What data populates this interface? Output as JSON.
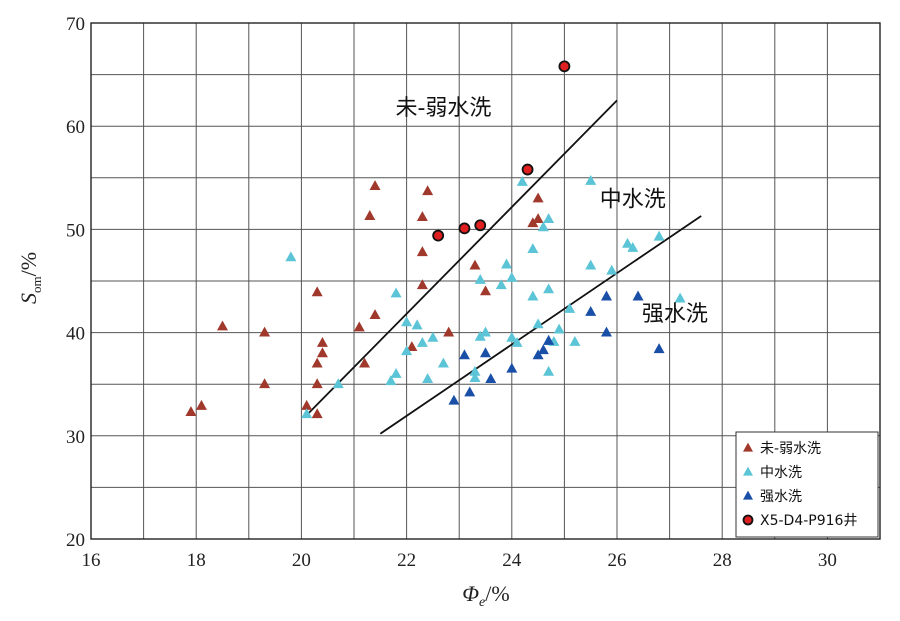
{
  "chart_data": {
    "type": "scatter",
    "xlabel": {
      "symbol": "Φ",
      "sub": "e",
      "unit": "/%"
    },
    "ylabel": {
      "symbol": "S",
      "sub": "om",
      "unit": "/%"
    },
    "xlim": [
      16,
      31
    ],
    "ylim": [
      20,
      70
    ],
    "xticks": [
      "16",
      "18",
      "20",
      "22",
      "24",
      "26",
      "28",
      "30"
    ],
    "yticks": [
      "20",
      "30",
      "40",
      "50",
      "60",
      "70"
    ],
    "grid": true,
    "legend_position": "bottom-right",
    "series": [
      {
        "name": "未-弱水洗",
        "marker": "triangle",
        "color": "#a0392c",
        "points": [
          [
            17.9,
            32.3
          ],
          [
            18.1,
            32.9
          ],
          [
            18.5,
            40.6
          ],
          [
            19.3,
            40.0
          ],
          [
            19.3,
            35.0
          ],
          [
            20.1,
            32.9
          ],
          [
            20.3,
            32.1
          ],
          [
            20.3,
            43.9
          ],
          [
            20.3,
            35.0
          ],
          [
            20.3,
            37.0
          ],
          [
            20.4,
            38.0
          ],
          [
            20.4,
            39.0
          ],
          [
            21.1,
            40.5
          ],
          [
            21.2,
            37.0
          ],
          [
            21.3,
            51.3
          ],
          [
            21.4,
            54.2
          ],
          [
            21.4,
            41.7
          ],
          [
            22.1,
            38.6
          ],
          [
            22.3,
            51.2
          ],
          [
            22.3,
            47.8
          ],
          [
            22.3,
            44.6
          ],
          [
            22.4,
            53.7
          ],
          [
            22.8,
            40.0
          ],
          [
            23.3,
            46.5
          ],
          [
            23.5,
            44.0
          ],
          [
            24.4,
            50.6
          ],
          [
            24.5,
            53.0
          ],
          [
            24.5,
            51.0
          ]
        ]
      },
      {
        "name": "中水洗",
        "marker": "triangle",
        "color": "#5bc4d6",
        "points": [
          [
            19.8,
            47.3
          ],
          [
            20.1,
            32.1
          ],
          [
            20.7,
            35.0
          ],
          [
            21.7,
            35.3
          ],
          [
            21.8,
            36.0
          ],
          [
            21.8,
            43.8
          ],
          [
            22.0,
            38.2
          ],
          [
            22.0,
            41.0
          ],
          [
            22.2,
            40.7
          ],
          [
            22.3,
            39.0
          ],
          [
            22.4,
            35.5
          ],
          [
            22.5,
            39.5
          ],
          [
            22.7,
            37.0
          ],
          [
            23.3,
            35.6
          ],
          [
            23.3,
            36.2
          ],
          [
            23.4,
            45.1
          ],
          [
            23.5,
            40.0
          ],
          [
            23.4,
            39.6
          ],
          [
            23.8,
            44.6
          ],
          [
            23.9,
            46.6
          ],
          [
            24.0,
            45.3
          ],
          [
            24.0,
            39.5
          ],
          [
            24.1,
            39.0
          ],
          [
            24.2,
            54.6
          ],
          [
            24.4,
            48.1
          ],
          [
            24.4,
            43.5
          ],
          [
            24.5,
            40.8
          ],
          [
            24.6,
            50.2
          ],
          [
            24.7,
            51.0
          ],
          [
            24.7,
            44.2
          ],
          [
            24.7,
            39.2
          ],
          [
            24.7,
            36.2
          ],
          [
            24.8,
            39.1
          ],
          [
            24.9,
            40.3
          ],
          [
            25.1,
            42.3
          ],
          [
            25.2,
            39.1
          ],
          [
            25.5,
            46.5
          ],
          [
            25.5,
            54.7
          ],
          [
            25.9,
            46.0
          ],
          [
            26.2,
            48.6
          ],
          [
            26.3,
            48.2
          ],
          [
            26.8,
            49.3
          ],
          [
            27.2,
            43.3
          ]
        ]
      },
      {
        "name": "强水洗",
        "marker": "triangle",
        "color": "#1a4fa8",
        "points": [
          [
            22.9,
            33.4
          ],
          [
            23.1,
            37.8
          ],
          [
            23.2,
            34.2
          ],
          [
            23.5,
            38.0
          ],
          [
            23.6,
            35.5
          ],
          [
            24.0,
            36.5
          ],
          [
            24.5,
            37.8
          ],
          [
            24.6,
            38.3
          ],
          [
            24.7,
            39.2
          ],
          [
            25.5,
            42.0
          ],
          [
            25.8,
            43.5
          ],
          [
            25.8,
            40.0
          ],
          [
            26.4,
            43.5
          ],
          [
            26.8,
            38.4
          ]
        ]
      },
      {
        "name": "X5-D4-P916井",
        "marker": "circle",
        "color": "#e02020",
        "points": [
          [
            22.6,
            49.4
          ],
          [
            23.1,
            50.1
          ],
          [
            23.4,
            50.4
          ],
          [
            24.3,
            55.8
          ],
          [
            25.0,
            65.8
          ]
        ]
      }
    ],
    "lines": [
      {
        "from": [
          20.1,
          32.0
        ],
        "to": [
          26.0,
          62.5
        ]
      },
      {
        "from": [
          21.5,
          30.2
        ],
        "to": [
          27.6,
          51.3
        ]
      }
    ],
    "annotations": [
      {
        "text": "未-弱水洗",
        "x": 22.7,
        "y": 61.1
      },
      {
        "text": "中水洗",
        "x": 26.3,
        "y": 52.2
      },
      {
        "text": "强水洗",
        "x": 27.1,
        "y": 41.1
      }
    ]
  }
}
